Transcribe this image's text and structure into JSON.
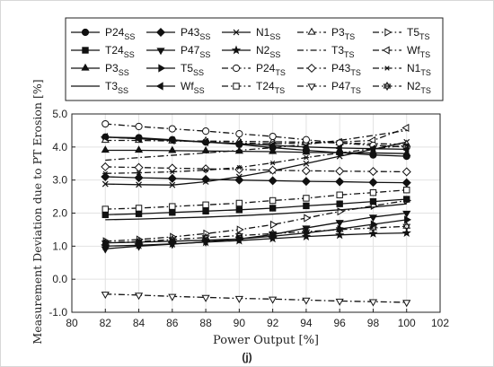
{
  "caption": "(j)",
  "chart_data": {
    "type": "line",
    "xlabel": "Power Output [%]",
    "ylabel": "Measurement Deviation due to PT Erosion [%]",
    "xlim": [
      80,
      102
    ],
    "ylim": [
      -1.0,
      5.0
    ],
    "xticks": [
      "80",
      "82",
      "84",
      "86",
      "88",
      "90",
      "92",
      "94",
      "96",
      "98",
      "100",
      "102"
    ],
    "yticks": [
      "-1.0",
      "0.0",
      "1.0",
      "2.0",
      "3.0",
      "4.0",
      "5.0"
    ],
    "grid": true,
    "legend_position": "top, above plot",
    "x": [
      82,
      84,
      86,
      88,
      90,
      92,
      94,
      96,
      98,
      100
    ],
    "series": [
      {
        "name": "P24",
        "sub": "SS",
        "marker": "circle-filled",
        "dash": "solid",
        "values": [
          4.3,
          4.28,
          4.22,
          4.15,
          4.08,
          3.98,
          3.9,
          3.83,
          3.76,
          3.72
        ]
      },
      {
        "name": "P43",
        "sub": "SS",
        "marker": "diamond-filled",
        "dash": "solid",
        "values": [
          3.1,
          3.07,
          3.05,
          3.02,
          3.0,
          2.98,
          2.96,
          2.95,
          2.93,
          2.92
        ]
      },
      {
        "name": "N1",
        "sub": "SS",
        "marker": "x",
        "dash": "solid",
        "values": [
          2.88,
          2.86,
          2.85,
          2.95,
          3.1,
          3.28,
          3.5,
          3.72,
          3.93,
          4.15
        ]
      },
      {
        "name": "P3",
        "sub": "TS",
        "marker": "triangle-open",
        "dash": "dashdot",
        "values": [
          4.2,
          4.2,
          4.18,
          4.18,
          4.17,
          4.16,
          4.15,
          4.12,
          4.1,
          4.08
        ]
      },
      {
        "name": "T5",
        "sub": "TS",
        "marker": "triangle-right-open",
        "dash": "dashdot",
        "values": [
          1.15,
          1.2,
          1.28,
          1.38,
          1.5,
          1.65,
          1.85,
          2.05,
          2.22,
          2.38
        ]
      },
      {
        "name": "T24",
        "sub": "SS",
        "marker": "square-filled",
        "dash": "solid",
        "values": [
          1.95,
          1.98,
          2.02,
          2.06,
          2.1,
          2.15,
          2.22,
          2.28,
          2.35,
          2.42
        ]
      },
      {
        "name": "P47",
        "sub": "SS",
        "marker": "triangle-down-filled",
        "dash": "solid",
        "values": [
          0.92,
          1.0,
          1.06,
          1.13,
          1.22,
          1.35,
          1.55,
          1.72,
          1.88,
          2.0
        ]
      },
      {
        "name": "N2",
        "sub": "SS",
        "marker": "star",
        "dash": "solid",
        "values": [
          1.0,
          1.03,
          1.07,
          1.12,
          1.17,
          1.23,
          1.29,
          1.34,
          1.38,
          1.4
        ]
      },
      {
        "name": "T3",
        "sub": "TS",
        "marker": "none",
        "dash": "dashdot",
        "values": [
          3.6,
          3.68,
          3.75,
          3.82,
          3.9,
          3.98,
          4.08,
          4.2,
          4.35,
          4.5
        ]
      },
      {
        "name": "Wf",
        "sub": "TS",
        "marker": "triangle-left-open",
        "dash": "dashdot",
        "values": [
          4.3,
          4.25,
          4.2,
          4.15,
          4.12,
          4.1,
          4.12,
          4.15,
          4.2,
          4.58
        ]
      },
      {
        "name": "P3",
        "sub": "SS",
        "marker": "triangle-up-filled",
        "dash": "solid",
        "values": [
          3.9,
          3.9,
          3.89,
          3.88,
          3.87,
          3.86,
          3.84,
          3.83,
          3.82,
          3.8
        ]
      },
      {
        "name": "T5",
        "sub": "SS",
        "marker": "triangle-right-filled",
        "dash": "solid",
        "values": [
          1.1,
          1.12,
          1.15,
          1.18,
          1.22,
          1.3,
          1.4,
          1.52,
          1.66,
          1.8
        ]
      },
      {
        "name": "P24",
        "sub": "TS",
        "marker": "circle-open",
        "dash": "dashdot",
        "values": [
          4.7,
          4.62,
          4.55,
          4.48,
          4.4,
          4.32,
          4.22,
          4.12,
          4.05,
          4.0
        ]
      },
      {
        "name": "P43",
        "sub": "TS",
        "marker": "diamond-open",
        "dash": "dashdot",
        "values": [
          3.4,
          3.38,
          3.36,
          3.34,
          3.32,
          3.3,
          3.28,
          3.27,
          3.26,
          3.25
        ]
      },
      {
        "name": "N1",
        "sub": "TS",
        "marker": "asterisk",
        "dash": "dashdot",
        "values": [
          3.2,
          3.22,
          3.25,
          3.3,
          3.38,
          3.52,
          3.68,
          3.82,
          3.95,
          4.05
        ]
      },
      {
        "name": "T3",
        "sub": "SS",
        "marker": "none",
        "dash": "solid",
        "values": [
          1.8,
          1.82,
          1.85,
          1.88,
          1.92,
          1.97,
          2.03,
          2.1,
          2.18,
          2.28
        ]
      },
      {
        "name": "Wf",
        "sub": "SS",
        "marker": "triangle-left-filled",
        "dash": "solid",
        "values": [
          4.3,
          4.25,
          4.2,
          4.15,
          4.1,
          4.05,
          4.0,
          3.97,
          3.95,
          3.93
        ]
      },
      {
        "name": "T24",
        "sub": "TS",
        "marker": "square-open",
        "dash": "dashdot",
        "values": [
          2.12,
          2.15,
          2.2,
          2.25,
          2.3,
          2.38,
          2.45,
          2.55,
          2.62,
          2.7
        ]
      },
      {
        "name": "P47",
        "sub": "TS",
        "marker": "triangle-down-open",
        "dash": "dashdot",
        "values": [
          -0.45,
          -0.48,
          -0.52,
          -0.55,
          -0.58,
          -0.6,
          -0.63,
          -0.66,
          -0.68,
          -0.7
        ]
      },
      {
        "name": "N2",
        "sub": "TS",
        "marker": "hexagram-open",
        "dash": "dashdot",
        "values": [
          1.1,
          1.14,
          1.2,
          1.26,
          1.32,
          1.38,
          1.44,
          1.5,
          1.55,
          1.6
        ]
      }
    ]
  }
}
